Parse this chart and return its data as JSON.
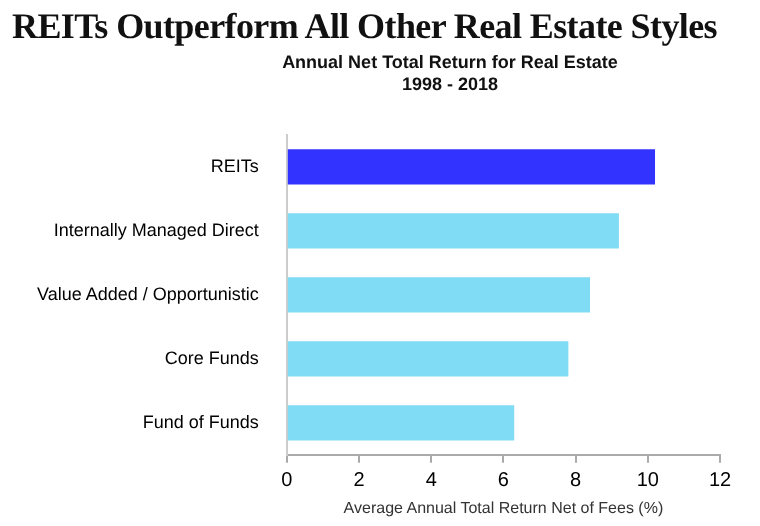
{
  "chart_data": {
    "type": "bar",
    "orientation": "horizontal",
    "title": "REITs Outperform All Other Real Estate Styles",
    "subtitle": "Annual Net Total Return for Real Estate\n1998 - 2018",
    "xlabel": "Average Annual Total Return Net of Fees (%)",
    "categories": [
      "REITs",
      "Internally Managed Direct",
      "Value Added / Opportunistic",
      "Core Funds",
      "Fund of Funds"
    ],
    "values": [
      10.2,
      9.2,
      8.4,
      7.8,
      6.3
    ],
    "colors": [
      "#3333ff",
      "#80dcf5",
      "#80dcf5",
      "#80dcf5",
      "#80dcf5"
    ],
    "xlim": [
      0,
      12
    ],
    "xticks": [
      0,
      2,
      4,
      6,
      8,
      10,
      12
    ],
    "grid": false,
    "legend": false
  }
}
